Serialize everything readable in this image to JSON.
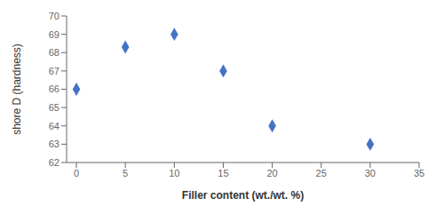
{
  "chart_data": {
    "type": "scatter",
    "x": [
      0,
      5,
      10,
      15,
      20,
      30
    ],
    "y": [
      66,
      68.3,
      69,
      67,
      64,
      63
    ],
    "marker": "diamond",
    "color": "#4472C4",
    "xlabel": "Filler content (wt./wt. %)",
    "ylabel": "shore D (hardness)",
    "xlim": [
      -1,
      35
    ],
    "ylim": [
      62,
      70
    ],
    "xticks": [
      0,
      5,
      10,
      15,
      20,
      25,
      30,
      35
    ],
    "yticks": [
      62,
      63,
      64,
      65,
      66,
      67,
      68,
      69,
      70
    ],
    "grid": false
  }
}
